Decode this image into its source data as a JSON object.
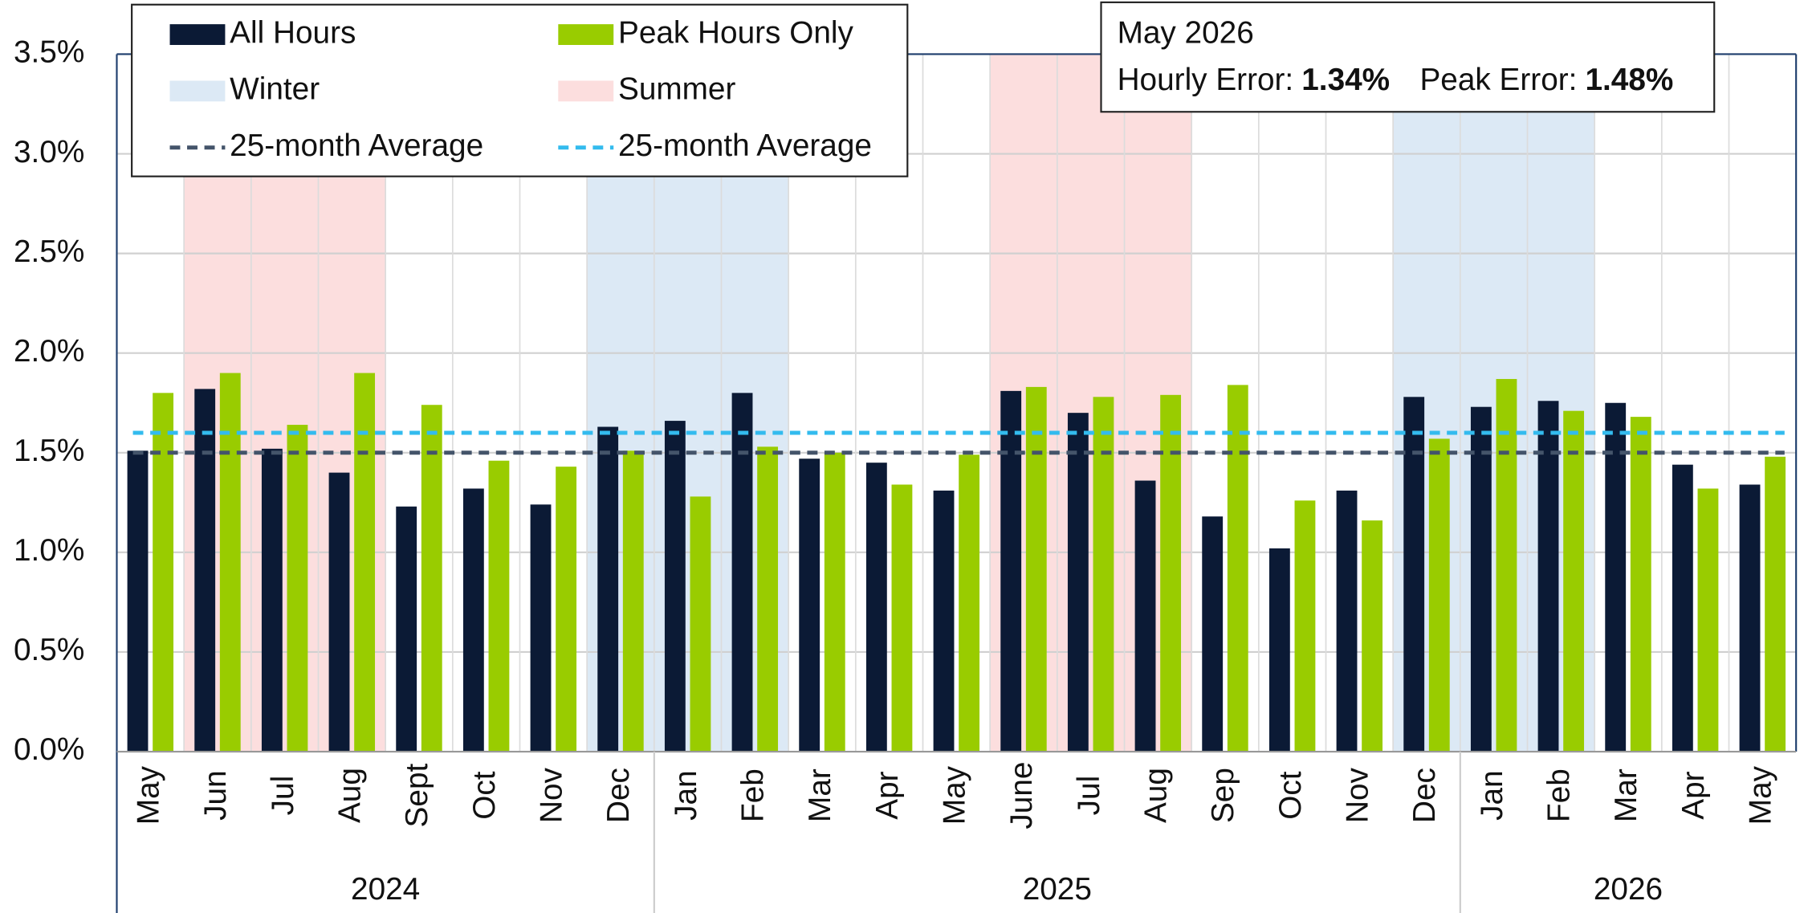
{
  "chart_data": {
    "type": "bar",
    "categories": [
      "May",
      "Jun",
      "Jul",
      "Aug",
      "Sept",
      "Oct",
      "Nov",
      "Dec",
      "Jan",
      "Feb",
      "Mar",
      "Apr",
      "May",
      "June",
      "Jul",
      "Aug",
      "Sep",
      "Oct",
      "Nov",
      "Dec",
      "Jan",
      "Feb",
      "Mar",
      "Apr",
      "May"
    ],
    "groups": [
      {
        "label": "2024",
        "count": 8
      },
      {
        "label": "2025",
        "count": 12
      },
      {
        "label": "2026",
        "count": 5
      }
    ],
    "series": [
      {
        "name": "All Hours",
        "color": "#0b1a35",
        "values": [
          1.51,
          1.82,
          1.52,
          1.4,
          1.23,
          1.32,
          1.24,
          1.63,
          1.66,
          1.8,
          1.47,
          1.45,
          1.31,
          1.81,
          1.7,
          1.36,
          1.18,
          1.02,
          1.31,
          1.78,
          1.73,
          1.76,
          1.75,
          1.44,
          1.34
        ]
      },
      {
        "name": "Peak Hours Only",
        "color": "#99cc00",
        "values": [
          1.8,
          1.9,
          1.64,
          1.9,
          1.74,
          1.46,
          1.43,
          1.51,
          1.28,
          1.53,
          1.5,
          1.34,
          1.49,
          1.83,
          1.78,
          1.79,
          1.84,
          1.26,
          1.16,
          1.57,
          1.87,
          1.71,
          1.68,
          1.32,
          1.48
        ]
      }
    ],
    "bands": [
      {
        "name": "Winter",
        "color": "#dce9f5",
        "spans": [
          [
            7,
            9
          ],
          [
            19,
            21
          ]
        ]
      },
      {
        "name": "Summer",
        "color": "#fcdede",
        "spans": [
          [
            1,
            3
          ],
          [
            13,
            15
          ]
        ]
      }
    ],
    "averages": [
      {
        "name": "25-month Average",
        "color": "#44546a",
        "value": 1.5
      },
      {
        "name": "25-month Average",
        "color": "#33bbee",
        "value": 1.6
      }
    ],
    "ylim": [
      0,
      3.5
    ],
    "yticks": [
      {
        "value": 0,
        "label": "0.0%"
      },
      {
        "value": 0.5,
        "label": "0.5%"
      },
      {
        "value": 1,
        "label": "1.0%"
      },
      {
        "value": 1.5,
        "label": "1.5%"
      },
      {
        "value": 2,
        "label": "2.0%"
      },
      {
        "value": 2.5,
        "label": "2.5%"
      },
      {
        "value": 3,
        "label": "3.0%"
      },
      {
        "value": 3.5,
        "label": "3.5%"
      }
    ],
    "grid": true,
    "annotation": {
      "title": "May 2026",
      "items": [
        {
          "label": "Hourly Error:",
          "value": "1.34%"
        },
        {
          "label": "Peak Error:",
          "value": "1.48%"
        }
      ]
    }
  }
}
